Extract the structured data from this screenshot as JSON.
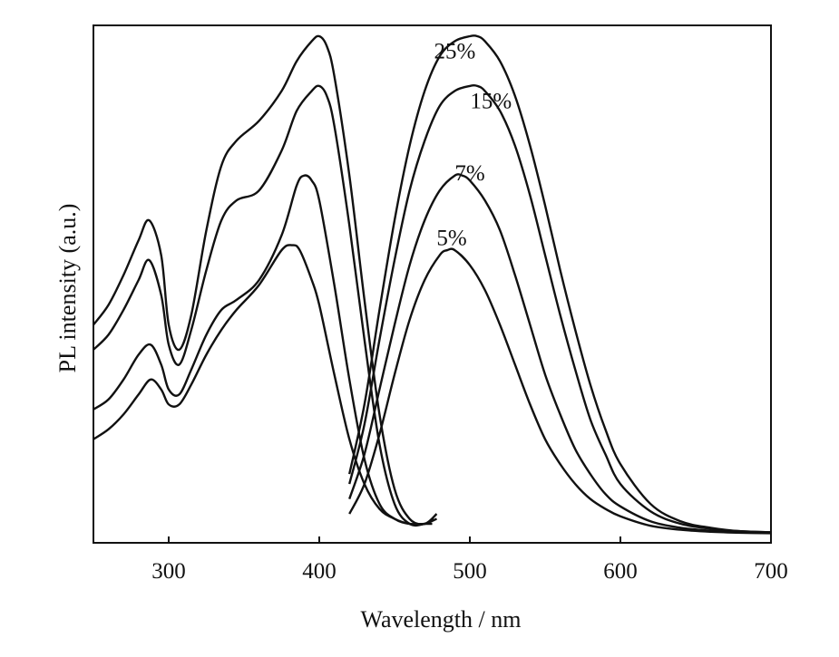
{
  "chart_data": {
    "type": "line",
    "title": "",
    "xlabel": "Wavelength / nm",
    "ylabel": "PL intensity (a.u.)",
    "xlim": [
      250,
      700
    ],
    "ylim": [
      0,
      1
    ],
    "y_ticks_shown": false,
    "x_ticks": [
      300,
      400,
      500,
      600,
      700
    ],
    "grid": false,
    "legend": "none (curves labeled directly)",
    "line_color": "#111111",
    "curve_labels": [
      {
        "text": "25%",
        "x": 490,
        "y": 0.955
      },
      {
        "text": "15%",
        "x": 514,
        "y": 0.855
      },
      {
        "text": "7%",
        "x": 500,
        "y": 0.71
      },
      {
        "text": "5%",
        "x": 488,
        "y": 0.58
      }
    ],
    "series": [
      {
        "group": "excitation",
        "label_ref": "25%",
        "x": [
          250,
          260,
          270,
          280,
          287,
          295,
          300,
          307,
          315,
          325,
          335,
          345,
          360,
          375,
          385,
          395,
          400,
          405,
          410,
          420,
          430,
          440,
          450,
          460,
          470,
          478
        ],
        "values": [
          0.42,
          0.46,
          0.52,
          0.59,
          0.63,
          0.56,
          0.42,
          0.37,
          0.44,
          0.61,
          0.74,
          0.79,
          0.83,
          0.89,
          0.95,
          0.99,
          1.0,
          0.98,
          0.92,
          0.72,
          0.47,
          0.24,
          0.09,
          0.03,
          0.02,
          0.04
        ]
      },
      {
        "group": "excitation",
        "label_ref": "15%",
        "x": [
          250,
          260,
          270,
          280,
          287,
          295,
          300,
          307,
          315,
          325,
          335,
          345,
          360,
          375,
          385,
          395,
          400,
          405,
          410,
          420,
          430,
          440,
          450,
          460,
          470,
          478
        ],
        "values": [
          0.37,
          0.4,
          0.45,
          0.51,
          0.55,
          0.48,
          0.38,
          0.34,
          0.41,
          0.53,
          0.63,
          0.67,
          0.69,
          0.77,
          0.85,
          0.89,
          0.9,
          0.88,
          0.82,
          0.62,
          0.39,
          0.18,
          0.06,
          0.02,
          0.02,
          0.03
        ]
      },
      {
        "group": "excitation",
        "label_ref": "7%",
        "x": [
          250,
          260,
          270,
          280,
          288,
          295,
          300,
          307,
          315,
          325,
          335,
          345,
          360,
          375,
          385,
          390,
          395,
          400,
          410,
          420,
          430,
          440,
          450,
          460,
          470,
          476
        ],
        "values": [
          0.25,
          0.27,
          0.31,
          0.36,
          0.38,
          0.34,
          0.29,
          0.28,
          0.33,
          0.4,
          0.45,
          0.47,
          0.51,
          0.6,
          0.7,
          0.72,
          0.71,
          0.67,
          0.5,
          0.31,
          0.15,
          0.06,
          0.03,
          0.02,
          0.02,
          0.03
        ]
      },
      {
        "group": "excitation",
        "label_ref": "5%",
        "x": [
          250,
          260,
          270,
          280,
          288,
          295,
          300,
          307,
          315,
          325,
          335,
          345,
          360,
          375,
          382,
          387,
          395,
          400,
          410,
          420,
          430,
          440,
          450,
          460,
          470,
          475
        ],
        "values": [
          0.19,
          0.21,
          0.24,
          0.28,
          0.31,
          0.29,
          0.26,
          0.26,
          0.3,
          0.36,
          0.41,
          0.45,
          0.5,
          0.57,
          0.58,
          0.57,
          0.51,
          0.46,
          0.32,
          0.19,
          0.1,
          0.05,
          0.03,
          0.02,
          0.02,
          0.02
        ]
      },
      {
        "group": "emission",
        "label_ref": "25%",
        "x": [
          420,
          430,
          440,
          450,
          460,
          470,
          480,
          490,
          500,
          505,
          510,
          520,
          530,
          540,
          550,
          560,
          570,
          580,
          590,
          600,
          620,
          640,
          660,
          680,
          700
        ],
        "values": [
          0.12,
          0.26,
          0.45,
          0.63,
          0.78,
          0.89,
          0.96,
          0.99,
          1.0,
          1.0,
          0.99,
          0.95,
          0.88,
          0.78,
          0.66,
          0.53,
          0.41,
          0.3,
          0.21,
          0.14,
          0.06,
          0.025,
          0.012,
          0.005,
          0.003
        ]
      },
      {
        "group": "emission",
        "label_ref": "15%",
        "x": [
          420,
          430,
          440,
          450,
          460,
          470,
          480,
          490,
          500,
          505,
          510,
          520,
          530,
          540,
          550,
          560,
          570,
          580,
          590,
          600,
          620,
          640,
          660,
          680,
          700
        ],
        "values": [
          0.1,
          0.22,
          0.39,
          0.55,
          0.69,
          0.79,
          0.86,
          0.89,
          0.9,
          0.9,
          0.89,
          0.85,
          0.78,
          0.68,
          0.56,
          0.44,
          0.33,
          0.23,
          0.16,
          0.1,
          0.045,
          0.02,
          0.01,
          0.005,
          0.003
        ]
      },
      {
        "group": "emission",
        "label_ref": "7%",
        "x": [
          420,
          430,
          440,
          450,
          460,
          470,
          480,
          490,
          495,
          500,
          510,
          520,
          530,
          540,
          550,
          560,
          570,
          580,
          590,
          600,
          620,
          640,
          660,
          680,
          700
        ],
        "values": [
          0.07,
          0.16,
          0.29,
          0.42,
          0.54,
          0.63,
          0.69,
          0.72,
          0.72,
          0.71,
          0.67,
          0.61,
          0.52,
          0.42,
          0.32,
          0.24,
          0.17,
          0.12,
          0.08,
          0.055,
          0.025,
          0.012,
          0.006,
          0.003,
          0.002
        ]
      },
      {
        "group": "emission",
        "label_ref": "5%",
        "x": [
          420,
          430,
          440,
          450,
          460,
          470,
          480,
          485,
          490,
          500,
          510,
          520,
          530,
          540,
          550,
          560,
          570,
          580,
          590,
          600,
          620,
          640,
          660,
          680,
          700
        ],
        "values": [
          0.04,
          0.1,
          0.2,
          0.32,
          0.43,
          0.51,
          0.56,
          0.57,
          0.57,
          0.54,
          0.49,
          0.42,
          0.34,
          0.26,
          0.19,
          0.14,
          0.1,
          0.07,
          0.05,
          0.035,
          0.016,
          0.008,
          0.004,
          0.002,
          0.001
        ]
      }
    ]
  }
}
